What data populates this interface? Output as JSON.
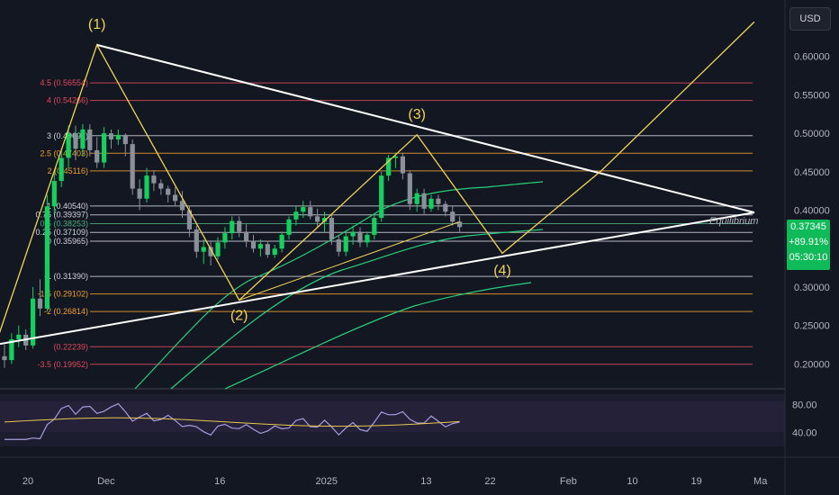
{
  "currency_label": "USD",
  "price_tag": {
    "price": "0.37345",
    "change": "+89.91%",
    "timer": "05:30:10"
  },
  "chart_data": {
    "type": "candlestick",
    "y_axis": {
      "min": 0.17,
      "max": 0.65,
      "ticks": [
        "0.60000",
        "0.55000",
        "0.50000",
        "0.45000",
        "0.40000",
        "0.30000",
        "0.25000",
        "0.20000"
      ],
      "tick_values": [
        0.6,
        0.55,
        0.5,
        0.45,
        0.4,
        0.3,
        0.25,
        0.2
      ]
    },
    "x_axis": {
      "labels": [
        "20",
        "Dec",
        "16",
        "2025",
        "13",
        "22",
        "Feb",
        "10",
        "19",
        "Ma"
      ],
      "label_days": [
        0,
        11,
        27,
        42,
        56,
        65,
        76,
        85,
        94,
        103
      ]
    },
    "fib_levels": [
      {
        "label": "4.5 (0.56554)",
        "value": 0.56554,
        "color": "#e04a5a"
      },
      {
        "label": "4 (0.54266)",
        "value": 0.54266,
        "color": "#e04a5a"
      },
      {
        "label": "3 (0.49691)",
        "value": 0.49691,
        "color": "#d1d4dc"
      },
      {
        "label": "2.5 (0.47403)",
        "value": 0.47403,
        "color": "#f0a030"
      },
      {
        "label": "2 (0.45116)",
        "value": 0.45116,
        "color": "#f0a030"
      },
      {
        "label": "1 (0.40540)",
        "value": 0.4054,
        "color": "#d1d4dc"
      },
      {
        "label": "0.75 (0.39397)",
        "value": 0.39397,
        "color": "#d1d4dc"
      },
      {
        "label": "0.5 (0.38253)",
        "value": 0.38253,
        "color": "#4caf80"
      },
      {
        "label": "0.25 (0.37109)",
        "value": 0.37109,
        "color": "#d1d4dc"
      },
      {
        "label": "0 (0.35965)",
        "value": 0.35965,
        "color": "#d1d4dc"
      },
      {
        "label": "-1 (0.31390)",
        "value": 0.3139,
        "color": "#d1d4dc"
      },
      {
        "label": "-1.5 (0.29102)",
        "value": 0.29102,
        "color": "#f0a030"
      },
      {
        "label": "-2 (0.26814)",
        "value": 0.26814,
        "color": "#f0a030"
      },
      {
        "label": "(0.22239)",
        "value": 0.22239,
        "color": "#e04a5a"
      },
      {
        "label": "-3.5 (0.19952)",
        "value": 0.19952,
        "color": "#e04a5a"
      }
    ],
    "waves": [
      {
        "label": "(1)",
        "day": 13,
        "value": 0.615
      },
      {
        "label": "(2)",
        "day": 33,
        "value": 0.283
      },
      {
        "label": "(3)",
        "day": 58,
        "value": 0.498
      },
      {
        "label": "(4)",
        "day": 70,
        "value": 0.344
      }
    ],
    "annotation": "Equilibrium",
    "candles_ohlc": [
      [
        0.21,
        0.225,
        0.195,
        0.205
      ],
      [
        0.205,
        0.24,
        0.2,
        0.232
      ],
      [
        0.232,
        0.25,
        0.222,
        0.238
      ],
      [
        0.238,
        0.245,
        0.218,
        0.224
      ],
      [
        0.224,
        0.3,
        0.22,
        0.285
      ],
      [
        0.285,
        0.31,
        0.262,
        0.272
      ],
      [
        0.272,
        0.42,
        0.268,
        0.405
      ],
      [
        0.405,
        0.45,
        0.395,
        0.438
      ],
      [
        0.438,
        0.48,
        0.43,
        0.468
      ],
      [
        0.468,
        0.51,
        0.455,
        0.5
      ],
      [
        0.5,
        0.51,
        0.465,
        0.48
      ],
      [
        0.48,
        0.512,
        0.47,
        0.505
      ],
      [
        0.505,
        0.512,
        0.47,
        0.478
      ],
      [
        0.478,
        0.495,
        0.455,
        0.462
      ],
      [
        0.462,
        0.508,
        0.455,
        0.5
      ],
      [
        0.5,
        0.505,
        0.48,
        0.492
      ],
      [
        0.492,
        0.505,
        0.485,
        0.498
      ],
      [
        0.498,
        0.5,
        0.47,
        0.486
      ],
      [
        0.486,
        0.492,
        0.42,
        0.428
      ],
      [
        0.428,
        0.44,
        0.4,
        0.415
      ],
      [
        0.415,
        0.455,
        0.41,
        0.445
      ],
      [
        0.445,
        0.452,
        0.425,
        0.435
      ],
      [
        0.435,
        0.44,
        0.42,
        0.428
      ],
      [
        0.428,
        0.432,
        0.41,
        0.42
      ],
      [
        0.42,
        0.43,
        0.405,
        0.412
      ],
      [
        0.412,
        0.425,
        0.39,
        0.4
      ],
      [
        0.4,
        0.405,
        0.365,
        0.375
      ],
      [
        0.375,
        0.38,
        0.338,
        0.346
      ],
      [
        0.346,
        0.362,
        0.33,
        0.352
      ],
      [
        0.352,
        0.36,
        0.328,
        0.34
      ],
      [
        0.34,
        0.365,
        0.336,
        0.358
      ],
      [
        0.358,
        0.378,
        0.35,
        0.37
      ],
      [
        0.37,
        0.392,
        0.362,
        0.386
      ],
      [
        0.386,
        0.392,
        0.365,
        0.372
      ],
      [
        0.372,
        0.382,
        0.352,
        0.36
      ],
      [
        0.36,
        0.368,
        0.345,
        0.35
      ],
      [
        0.35,
        0.362,
        0.34,
        0.356
      ],
      [
        0.356,
        0.36,
        0.338,
        0.342
      ],
      [
        0.342,
        0.355,
        0.338,
        0.35
      ],
      [
        0.35,
        0.372,
        0.345,
        0.368
      ],
      [
        0.368,
        0.392,
        0.362,
        0.388
      ],
      [
        0.388,
        0.405,
        0.38,
        0.398
      ],
      [
        0.398,
        0.412,
        0.39,
        0.404
      ],
      [
        0.404,
        0.412,
        0.388,
        0.392
      ],
      [
        0.392,
        0.402,
        0.378,
        0.385
      ],
      [
        0.385,
        0.398,
        0.372,
        0.39
      ],
      [
        0.39,
        0.395,
        0.355,
        0.362
      ],
      [
        0.362,
        0.368,
        0.34,
        0.346
      ],
      [
        0.346,
        0.372,
        0.34,
        0.366
      ],
      [
        0.366,
        0.38,
        0.355,
        0.372
      ],
      [
        0.372,
        0.378,
        0.352,
        0.358
      ],
      [
        0.358,
        0.372,
        0.352,
        0.368
      ],
      [
        0.368,
        0.395,
        0.362,
        0.39
      ],
      [
        0.39,
        0.45,
        0.385,
        0.445
      ],
      [
        0.445,
        0.472,
        0.438,
        0.468
      ],
      [
        0.468,
        0.475,
        0.455,
        0.47
      ],
      [
        0.47,
        0.475,
        0.44,
        0.448
      ],
      [
        0.448,
        0.452,
        0.4,
        0.408
      ],
      [
        0.408,
        0.428,
        0.398,
        0.422
      ],
      [
        0.422,
        0.428,
        0.395,
        0.402
      ],
      [
        0.402,
        0.42,
        0.398,
        0.415
      ],
      [
        0.415,
        0.42,
        0.4,
        0.408
      ],
      [
        0.408,
        0.412,
        0.392,
        0.398
      ],
      [
        0.398,
        0.405,
        0.38,
        0.385
      ],
      [
        0.385,
        0.392,
        0.372,
        0.378
      ]
    ],
    "rsi": {
      "ticks": [
        "80.00",
        "40.00"
      ],
      "tick_values": [
        80,
        40
      ],
      "min": 20,
      "max": 95
    }
  }
}
